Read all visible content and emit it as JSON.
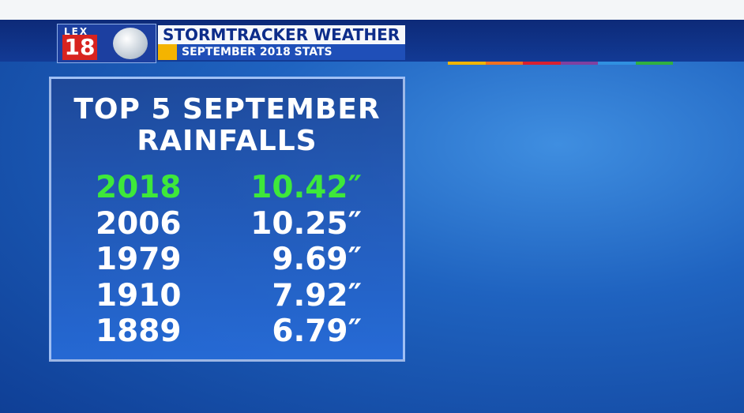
{
  "header": {
    "logo": {
      "top": "LEX",
      "number": "18"
    },
    "title": "STORMTRACKER WEATHER",
    "subtitle": "SEPTEMBER 2018 STATS"
  },
  "panel": {
    "title_lines": [
      "TOP 5 SEPTEMBER",
      "RAINFALLS"
    ],
    "rows": [
      [
        "2018",
        "10.42″"
      ],
      [
        "2006",
        "10.25″"
      ],
      [
        "1979",
        "9.69″"
      ],
      [
        "1910",
        "7.92″"
      ],
      [
        "1889",
        "6.79″"
      ]
    ]
  }
}
